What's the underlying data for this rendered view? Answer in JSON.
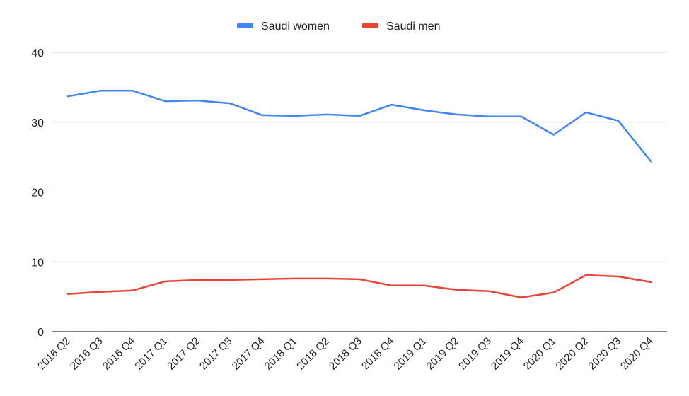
{
  "chart_data": {
    "type": "line",
    "categories": [
      "2016 Q2",
      "2016 Q3",
      "2016 Q4",
      "2017 Q1",
      "2017 Q2",
      "2017 Q3",
      "2017 Q4",
      "2018 Q1",
      "2018 Q2",
      "2018 Q3",
      "2018 Q4",
      "2019 Q1",
      "2019 Q2",
      "2019 Q3",
      "2019 Q4",
      "2020 Q1",
      "2020 Q2",
      "2020 Q3",
      "2020 Q4"
    ],
    "series": [
      {
        "name": "Saudi women",
        "color": "#4285f4",
        "values": [
          33.7,
          34.5,
          34.5,
          33.0,
          33.1,
          32.7,
          31.0,
          30.9,
          31.1,
          30.9,
          32.5,
          31.7,
          31.1,
          30.8,
          30.8,
          28.2,
          31.4,
          30.2,
          24.4
        ]
      },
      {
        "name": "Saudi men",
        "color": "#ea4335",
        "values": [
          5.4,
          5.7,
          5.9,
          7.2,
          7.4,
          7.4,
          7.5,
          7.6,
          7.6,
          7.5,
          6.6,
          6.6,
          6.0,
          5.8,
          4.9,
          5.6,
          8.1,
          7.9,
          7.1
        ]
      }
    ],
    "yticks": [
      "0",
      "10",
      "20",
      "30",
      "40"
    ],
    "ylim": [
      0,
      40
    ],
    "grid": true,
    "legend_position": "top"
  }
}
